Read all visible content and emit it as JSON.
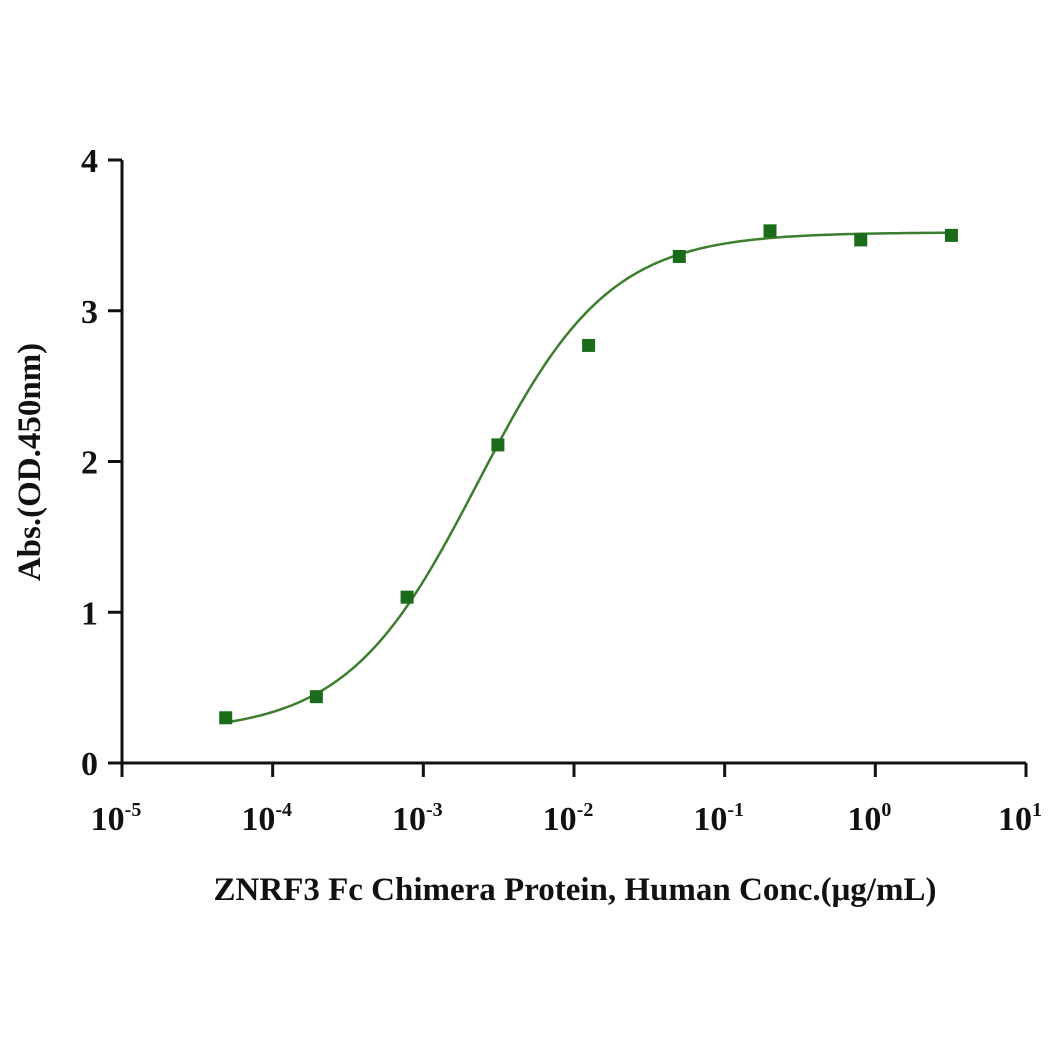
{
  "chart_data": {
    "type": "scatter",
    "title": "",
    "xlabel": "ZNRF3 Fc Chimera Protein, Human Conc.(μg/mL)",
    "ylabel": "Abs.(OD.450nm)",
    "x_scale": "log",
    "xlim": [
      1e-05,
      10
    ],
    "ylim": [
      0,
      4
    ],
    "x_ticks": [
      {
        "value": 1e-05,
        "base": "10",
        "exp": "-5"
      },
      {
        "value": 0.0001,
        "base": "10",
        "exp": "-4"
      },
      {
        "value": 0.001,
        "base": "10",
        "exp": "-3"
      },
      {
        "value": 0.01,
        "base": "10",
        "exp": "-2"
      },
      {
        "value": 0.1,
        "base": "10",
        "exp": "-1"
      },
      {
        "value": 1,
        "base": "10",
        "exp": "0"
      },
      {
        "value": 10,
        "base": "10",
        "exp": "1"
      }
    ],
    "y_ticks": [
      {
        "value": 0,
        "label": "0"
      },
      {
        "value": 1,
        "label": "1"
      },
      {
        "value": 2,
        "label": "2"
      },
      {
        "value": 3,
        "label": "3"
      },
      {
        "value": 4,
        "label": "4"
      }
    ],
    "grid": false,
    "series": [
      {
        "color": "#1a6b1a",
        "marker": "square",
        "points": [
          {
            "x": 4.88e-05,
            "y": 0.3
          },
          {
            "x": 0.000195,
            "y": 0.44
          },
          {
            "x": 0.00078,
            "y": 1.1
          },
          {
            "x": 0.003125,
            "y": 2.11
          },
          {
            "x": 0.0125,
            "y": 2.77
          },
          {
            "x": 0.05,
            "y": 3.36
          },
          {
            "x": 0.2,
            "y": 3.53
          },
          {
            "x": 0.8,
            "y": 3.47
          },
          {
            "x": 3.2,
            "y": 3.5
          }
        ],
        "fit": {
          "model": "4PL",
          "bottom": 0.2,
          "top": 3.52,
          "ec50": 0.0023,
          "hill": 1.0
        }
      }
    ],
    "curve_color": "#3c7d2e"
  }
}
